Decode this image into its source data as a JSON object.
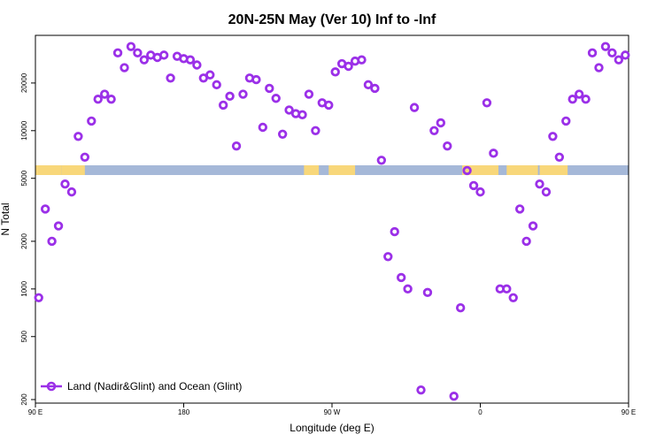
{
  "chart_data": {
    "type": "scatter",
    "title": "20N-25N May (Ver 10)   Inf to -Inf",
    "xlabel": "Longitude (deg E)",
    "ylabel": "N Total",
    "x_axis": {
      "range": [
        90,
        450
      ],
      "ticks": [
        {
          "value": 90,
          "label": "90 E"
        },
        {
          "value": 180,
          "label": "180"
        },
        {
          "value": 270,
          "label": "90 W"
        },
        {
          "value": 360,
          "label": "0"
        },
        {
          "value": 450,
          "label": "90 E"
        }
      ]
    },
    "y_axis": {
      "scale": "log",
      "range": [
        190,
        40000
      ],
      "ticks": [
        {
          "value": 200,
          "label": "200"
        },
        {
          "value": 500,
          "label": "500"
        },
        {
          "value": 1000,
          "label": "1000"
        },
        {
          "value": 2000,
          "label": "2000"
        },
        {
          "value": 5000,
          "label": "5000"
        },
        {
          "value": 10000,
          "label": "10000"
        },
        {
          "value": 20000,
          "label": "20000"
        }
      ]
    },
    "grid": false,
    "legend": {
      "placement": "bottom-left"
    },
    "series": [
      {
        "name": "Land (Nadir&Glint) and Ocean (Glint)",
        "color": "#9b30e8",
        "marker": "open-circle",
        "points": [
          [
            92,
            880
          ],
          [
            96,
            3200
          ],
          [
            100,
            2000
          ],
          [
            104,
            2500
          ],
          [
            108,
            4600
          ],
          [
            112,
            4100
          ],
          [
            116,
            9200
          ],
          [
            120,
            6800
          ],
          [
            124,
            11500
          ],
          [
            128,
            15800
          ],
          [
            132,
            17000
          ],
          [
            136,
            15800
          ],
          [
            140,
            31000
          ],
          [
            144,
            25000
          ],
          [
            148,
            34000
          ],
          [
            152,
            31000
          ],
          [
            156,
            28000
          ],
          [
            160,
            30000
          ],
          [
            164,
            29000
          ],
          [
            168,
            30000
          ],
          [
            172,
            21500
          ],
          [
            176,
            29500
          ],
          [
            180,
            28500
          ],
          [
            184,
            28000
          ],
          [
            188,
            26000
          ],
          [
            192,
            21500
          ],
          [
            196,
            22500
          ],
          [
            200,
            19500
          ],
          [
            204,
            14500
          ],
          [
            208,
            16500
          ],
          [
            212,
            8000
          ],
          [
            216,
            17000
          ],
          [
            220,
            21500
          ],
          [
            224,
            21000
          ],
          [
            228,
            10500
          ],
          [
            232,
            18500
          ],
          [
            236,
            16000
          ],
          [
            240,
            9500
          ],
          [
            244,
            13500
          ],
          [
            248,
            12800
          ],
          [
            252,
            12600
          ],
          [
            256,
            17000
          ],
          [
            260,
            10000
          ],
          [
            264,
            15000
          ],
          [
            268,
            14500
          ],
          [
            272,
            23500
          ],
          [
            276,
            26500
          ],
          [
            280,
            25500
          ],
          [
            284,
            27500
          ],
          [
            288,
            28000
          ],
          [
            292,
            19500
          ],
          [
            296,
            18500
          ],
          [
            300,
            6500
          ],
          [
            304,
            1600
          ],
          [
            308,
            2300
          ],
          [
            312,
            1180
          ],
          [
            316,
            1000
          ],
          [
            320,
            14000
          ],
          [
            324,
            230
          ],
          [
            328,
            950
          ],
          [
            332,
            10000
          ],
          [
            336,
            11200
          ],
          [
            340,
            8000
          ],
          [
            344,
            210
          ],
          [
            348,
            760
          ],
          [
            352,
            5600
          ],
          [
            356,
            4500
          ],
          [
            360,
            4100
          ],
          [
            364,
            15000
          ],
          [
            368,
            7200
          ],
          [
            372,
            1000
          ],
          [
            376,
            1000
          ],
          [
            380,
            880
          ],
          [
            384,
            3200
          ],
          [
            388,
            2000
          ],
          [
            392,
            2500
          ],
          [
            396,
            4600
          ],
          [
            400,
            4100
          ],
          [
            404,
            9200
          ],
          [
            408,
            6800
          ],
          [
            412,
            11500
          ],
          [
            416,
            15800
          ],
          [
            420,
            17000
          ],
          [
            424,
            15800
          ],
          [
            428,
            31000
          ],
          [
            432,
            25000
          ],
          [
            436,
            34000
          ],
          [
            440,
            31000
          ],
          [
            444,
            28000
          ],
          [
            448,
            30000
          ]
        ]
      }
    ]
  }
}
